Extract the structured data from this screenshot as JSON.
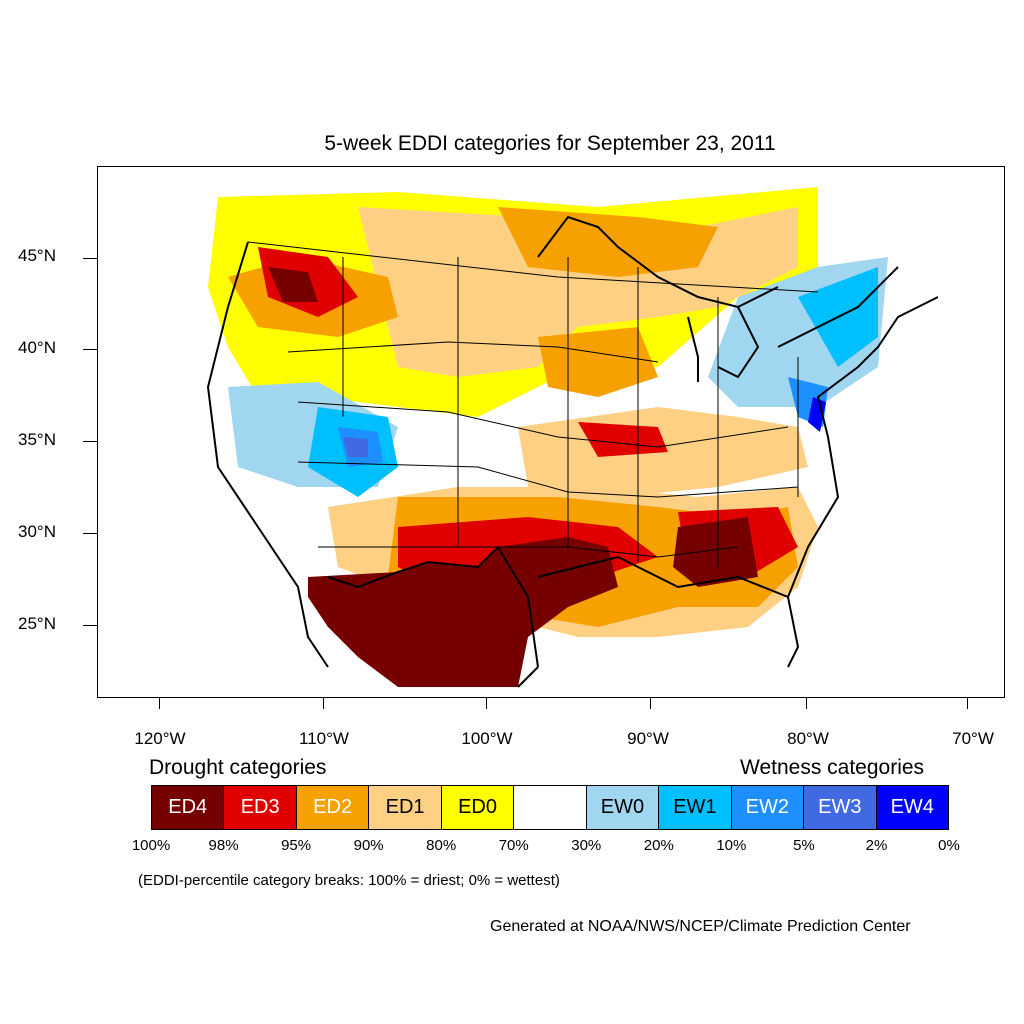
{
  "title": "5-week EDDI categories for September 23, 2011",
  "lat_labels": [
    "45°N",
    "40°N",
    "35°N",
    "30°N",
    "25°N"
  ],
  "lon_labels": [
    "120°W",
    "110°W",
    "100°W",
    "90°W",
    "80°W",
    "70°W"
  ],
  "legend": {
    "drought_heading": "Drought categories",
    "wetness_heading": "Wetness categories",
    "categories": [
      {
        "label": "ED4",
        "color": "#760000",
        "text_color": "#ffffff"
      },
      {
        "label": "ED3",
        "color": "#e00000",
        "text_color": "#ffffff"
      },
      {
        "label": "ED2",
        "color": "#f7a100",
        "text_color": "#ffffff"
      },
      {
        "label": "ED1",
        "color": "#fdd083",
        "text_color": "#000000"
      },
      {
        "label": "ED0",
        "color": "#ffff00",
        "text_color": "#000000"
      },
      {
        "label": "",
        "color": "#ffffff",
        "text_color": "#000000"
      },
      {
        "label": "EW0",
        "color": "#a0d6f0",
        "text_color": "#000000"
      },
      {
        "label": "EW1",
        "color": "#00bfff",
        "text_color": "#000000"
      },
      {
        "label": "EW2",
        "color": "#1e8fff",
        "text_color": "#ffffff"
      },
      {
        "label": "EW3",
        "color": "#4169e1",
        "text_color": "#ffffff"
      },
      {
        "label": "EW4",
        "color": "#0000ff",
        "text_color": "#ffffff"
      }
    ],
    "percent_breaks": [
      "100%",
      "98%",
      "95%",
      "90%",
      "80%",
      "70%",
      "30%",
      "20%",
      "10%",
      "5%",
      "2%",
      "0%"
    ]
  },
  "note": "(EDDI-percentile category breaks: 100% = driest; 0% = wettest)",
  "credit": "Generated at NOAA/NWS/NCEP/Climate Prediction Center"
}
